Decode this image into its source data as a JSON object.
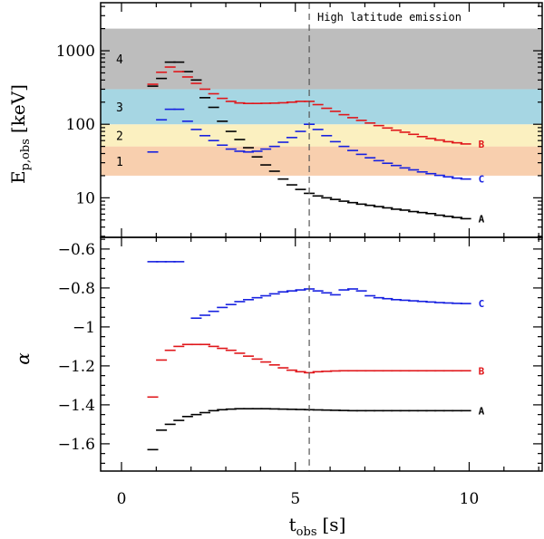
{
  "chart_data": [
    {
      "type": "scatter",
      "panel": "top",
      "title": "",
      "ylabel": "E",
      "ylabel_sub": "p,obs",
      "ylabel_unit": "[keV]",
      "yscale": "log",
      "xlim": [
        -0.6,
        12.1
      ],
      "ylim": [
        2.9,
        4500
      ],
      "yticks": [
        10,
        100,
        1000
      ],
      "ytick_labels": [
        "10",
        "100",
        "1000"
      ],
      "annotation": "High latitude emission",
      "vline_x": 5.4,
      "bands": [
        {
          "label": "1",
          "y0": 20,
          "y1": 50,
          "color": "#f8cfae"
        },
        {
          "label": "2",
          "y0": 50,
          "y1": 100,
          "color": "#fbf0c0"
        },
        {
          "label": "3",
          "y0": 100,
          "y1": 300,
          "color": "#a6d6e3"
        },
        {
          "label": "4",
          "y0": 300,
          "y1": 2000,
          "color": "#bdbdbd"
        }
      ],
      "series": [
        {
          "name": "A",
          "color": "#000000",
          "x": [
            0.9,
            1.15,
            1.4,
            1.65,
            1.9,
            2.15,
            2.4,
            2.65,
            2.9,
            3.15,
            3.4,
            3.65,
            3.9,
            4.15,
            4.4,
            4.65,
            4.9,
            5.15,
            5.4,
            5.65,
            5.9,
            6.15,
            6.4,
            6.65,
            6.9,
            7.15,
            7.4,
            7.65,
            7.9,
            8.15,
            8.4,
            8.65,
            8.9,
            9.15,
            9.4,
            9.65,
            9.9
          ],
          "y": [
            330,
            420,
            700,
            700,
            520,
            400,
            230,
            170,
            110,
            80,
            62,
            48,
            36,
            28,
            23,
            18,
            15,
            13,
            11.5,
            10.6,
            10,
            9.5,
            9,
            8.6,
            8.2,
            7.9,
            7.6,
            7.3,
            7,
            6.8,
            6.5,
            6.3,
            6.1,
            5.8,
            5.6,
            5.4,
            5.2
          ]
        },
        {
          "name": "B",
          "color": "#e0161a",
          "x": [
            0.9,
            1.15,
            1.4,
            1.65,
            1.9,
            2.15,
            2.4,
            2.65,
            2.9,
            3.15,
            3.4,
            3.65,
            3.9,
            4.15,
            4.4,
            4.65,
            4.9,
            5.15,
            5.4,
            5.65,
            5.9,
            6.15,
            6.4,
            6.65,
            6.9,
            7.15,
            7.4,
            7.65,
            7.9,
            8.15,
            8.4,
            8.65,
            8.9,
            9.15,
            9.4,
            9.65,
            9.9
          ],
          "y": [
            350,
            510,
            600,
            520,
            440,
            360,
            300,
            260,
            225,
            205,
            195,
            192,
            192,
            193,
            194,
            196,
            200,
            205,
            205,
            185,
            165,
            150,
            135,
            123,
            113,
            104,
            96,
            89,
            83,
            78,
            73,
            68,
            64,
            61,
            58,
            56,
            54
          ]
        },
        {
          "name": "C",
          "color": "#1620e0",
          "x": [
            0.9,
            1.15,
            1.4,
            1.65,
            1.9,
            2.15,
            2.4,
            2.65,
            2.9,
            3.15,
            3.4,
            3.65,
            3.9,
            4.15,
            4.4,
            4.65,
            4.9,
            5.15,
            5.4,
            5.65,
            5.9,
            6.15,
            6.4,
            6.65,
            6.9,
            7.15,
            7.4,
            7.65,
            7.9,
            8.15,
            8.4,
            8.65,
            8.9,
            9.15,
            9.4,
            9.65,
            9.9
          ],
          "y": [
            42,
            115,
            160,
            160,
            110,
            85,
            70,
            60,
            52,
            46,
            43,
            42,
            43,
            46,
            50,
            57,
            66,
            80,
            100,
            85,
            70,
            58,
            50,
            44,
            39,
            35,
            32,
            29.5,
            27.5,
            25.5,
            24,
            22.5,
            21.3,
            20.2,
            19.3,
            18.5,
            18
          ]
        }
      ]
    },
    {
      "type": "scatter",
      "panel": "bottom",
      "ylabel": "α",
      "xlabel": "t",
      "xlabel_sub": "obs",
      "xlabel_unit": "[s]",
      "xlim": [
        -0.6,
        12.1
      ],
      "ylim": [
        -1.74,
        -0.54
      ],
      "xticks": [
        0,
        5,
        10
      ],
      "xtick_labels": [
        "0",
        "5",
        "10"
      ],
      "yticks": [
        -1.6,
        -1.4,
        -1.2,
        -1,
        -0.8,
        -0.6
      ],
      "ytick_labels": [
        "−1.6",
        "−1.4",
        "−1.2",
        "−1",
        "−0.8",
        "−0.6"
      ],
      "vline_x": 5.4,
      "series": [
        {
          "name": "A",
          "color": "#000000",
          "x": [
            0.9,
            1.15,
            1.4,
            1.65,
            1.9,
            2.15,
            2.4,
            2.65,
            2.9,
            3.15,
            3.4,
            3.65,
            3.9,
            4.15,
            4.4,
            4.65,
            4.9,
            5.15,
            5.4,
            5.65,
            5.9,
            6.15,
            6.4,
            6.65,
            6.9,
            7.15,
            7.4,
            7.65,
            7.9,
            8.15,
            8.4,
            8.65,
            8.9,
            9.15,
            9.4,
            9.65,
            9.9
          ],
          "y": [
            -1.63,
            -1.53,
            -1.5,
            -1.48,
            -1.46,
            -1.45,
            -1.44,
            -1.43,
            -1.425,
            -1.422,
            -1.42,
            -1.42,
            -1.42,
            -1.42,
            -1.421,
            -1.422,
            -1.423,
            -1.424,
            -1.425,
            -1.426,
            -1.427,
            -1.428,
            -1.429,
            -1.43,
            -1.43,
            -1.43,
            -1.43,
            -1.43,
            -1.43,
            -1.43,
            -1.43,
            -1.43,
            -1.43,
            -1.43,
            -1.43,
            -1.43,
            -1.43
          ]
        },
        {
          "name": "B",
          "color": "#e0161a",
          "x": [
            0.9,
            1.15,
            1.4,
            1.65,
            1.9,
            2.15,
            2.4,
            2.65,
            2.9,
            3.15,
            3.4,
            3.65,
            3.9,
            4.15,
            4.4,
            4.65,
            4.9,
            5.15,
            5.4,
            5.65,
            5.9,
            6.15,
            6.4,
            6.65,
            6.9,
            7.15,
            7.4,
            7.65,
            7.9,
            8.15,
            8.4,
            8.65,
            8.9,
            9.15,
            9.4,
            9.65,
            9.9
          ],
          "y": [
            -1.36,
            -1.17,
            -1.12,
            -1.1,
            -1.09,
            -1.09,
            -1.09,
            -1.1,
            -1.11,
            -1.12,
            -1.135,
            -1.15,
            -1.165,
            -1.18,
            -1.195,
            -1.21,
            -1.222,
            -1.23,
            -1.235,
            -1.23,
            -1.228,
            -1.226,
            -1.225,
            -1.225,
            -1.225,
            -1.225,
            -1.225,
            -1.225,
            -1.225,
            -1.225,
            -1.225,
            -1.225,
            -1.225,
            -1.225,
            -1.225,
            -1.225,
            -1.225
          ]
        },
        {
          "name": "C",
          "color": "#1620e0",
          "x": [
            0.9,
            1.15,
            1.4,
            1.65,
            1.9,
            2.15,
            2.4,
            2.65,
            2.9,
            3.15,
            3.4,
            3.65,
            3.9,
            4.15,
            4.4,
            4.65,
            4.9,
            5.15,
            5.4,
            5.65,
            5.9,
            6.15,
            6.4,
            6.65,
            6.9,
            7.15,
            7.4,
            7.65,
            7.9,
            8.15,
            8.4,
            8.65,
            8.9,
            9.15,
            9.4,
            9.65,
            9.9
          ],
          "y": [
            -0.665,
            -0.665,
            -0.665,
            -0.665,
            null,
            -0.955,
            -0.94,
            -0.92,
            -0.9,
            -0.885,
            -0.87,
            -0.86,
            -0.85,
            -0.84,
            -0.83,
            -0.82,
            -0.815,
            -0.81,
            -0.805,
            -0.815,
            -0.825,
            -0.835,
            -0.81,
            -0.805,
            -0.815,
            -0.84,
            -0.85,
            -0.855,
            -0.86,
            -0.863,
            -0.866,
            -0.869,
            -0.872,
            -0.875,
            -0.877,
            -0.879,
            -0.88
          ]
        }
      ]
    }
  ]
}
